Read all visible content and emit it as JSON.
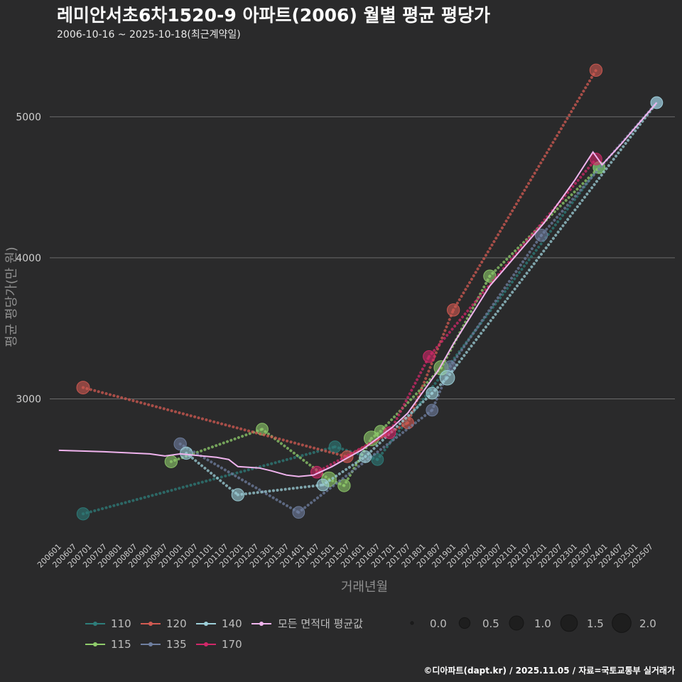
{
  "chart_data": {
    "type": "line",
    "title": "레미안서초6차1520-9 아파트(2006) 월별 평균 평당가",
    "subtitle": "2006-10-16 ~ 2025-10-18(최근계약일)",
    "xlabel": "거래년월",
    "ylabel": "평균 평당가(만 원)",
    "caption": "©디아파트(dapt.kr) / 2025.11.05 / 자료=국토교통부 실거래가",
    "x_ticks": [
      "200601",
      "200607",
      "200701",
      "200707",
      "200801",
      "200807",
      "200901",
      "200907",
      "201001",
      "201007",
      "201101",
      "201107",
      "201201",
      "201207",
      "201301",
      "201307",
      "201401",
      "201407",
      "201501",
      "201507",
      "201601",
      "201607",
      "201701",
      "201707",
      "201801",
      "201807",
      "201901",
      "201907",
      "202001",
      "202007",
      "202101",
      "202107",
      "202201",
      "202207",
      "202301",
      "202307",
      "202401",
      "202407",
      "202501",
      "202507"
    ],
    "y_ticks": [
      3000,
      4000,
      5000
    ],
    "ylim": [
      2000,
      5450
    ],
    "xlim": [
      2005.7,
      2026.3
    ],
    "series": [
      {
        "name": "110",
        "color": "#2e7d7a",
        "points": [
          {
            "x": 2006.8,
            "y": 2185,
            "size": 0.9
          },
          {
            "x": 2015.1,
            "y": 2660,
            "size": 0.8
          },
          {
            "x": 2016.5,
            "y": 2570,
            "size": 0.8
          },
          {
            "x": 2023.8,
            "y": 4640,
            "size": 0.6
          }
        ]
      },
      {
        "name": "115",
        "color": "#8fcc6b",
        "points": [
          {
            "x": 2009.7,
            "y": 2555,
            "size": 0.9
          },
          {
            "x": 2012.7,
            "y": 2785,
            "size": 0.8
          },
          {
            "x": 2014.9,
            "y": 2430,
            "size": 1.5
          },
          {
            "x": 2015.4,
            "y": 2385,
            "size": 0.9
          },
          {
            "x": 2016.3,
            "y": 2720,
            "size": 1.5
          },
          {
            "x": 2016.6,
            "y": 2770,
            "size": 0.8
          },
          {
            "x": 2018.6,
            "y": 3220,
            "size": 1.4
          },
          {
            "x": 2020.2,
            "y": 3870,
            "size": 0.9
          },
          {
            "x": 2023.8,
            "y": 4640,
            "size": 0.8
          }
        ]
      },
      {
        "name": "120",
        "color": "#d25a52",
        "points": [
          {
            "x": 2006.8,
            "y": 3080,
            "size": 1.0
          },
          {
            "x": 2015.5,
            "y": 2590,
            "size": 0.8
          },
          {
            "x": 2017.5,
            "y": 2830,
            "size": 0.8
          },
          {
            "x": 2019.0,
            "y": 3630,
            "size": 0.9
          },
          {
            "x": 2023.7,
            "y": 5330,
            "size": 0.9
          }
        ]
      },
      {
        "name": "135",
        "color": "#6f7fa0",
        "points": [
          {
            "x": 2010.0,
            "y": 2680,
            "size": 0.9
          },
          {
            "x": 2013.9,
            "y": 2195,
            "size": 0.8
          },
          {
            "x": 2018.3,
            "y": 2920,
            "size": 0.8
          },
          {
            "x": 2018.9,
            "y": 3230,
            "size": 0.7
          },
          {
            "x": 2021.9,
            "y": 4160,
            "size": 0.9
          },
          {
            "x": 2025.7,
            "y": 5100,
            "size": 0.8
          }
        ]
      },
      {
        "name": "140",
        "color": "#9ccfd8",
        "points": [
          {
            "x": 2010.2,
            "y": 2615,
            "size": 0.9
          },
          {
            "x": 2011.9,
            "y": 2320,
            "size": 0.9
          },
          {
            "x": 2014.7,
            "y": 2390,
            "size": 0.8
          },
          {
            "x": 2016.1,
            "y": 2590,
            "size": 0.8
          },
          {
            "x": 2018.3,
            "y": 3040,
            "size": 0.8
          },
          {
            "x": 2018.8,
            "y": 3150,
            "size": 1.5
          },
          {
            "x": 2025.7,
            "y": 5100,
            "size": 0.8
          }
        ]
      },
      {
        "name": "170",
        "color": "#d12869",
        "points": [
          {
            "x": 2014.5,
            "y": 2480,
            "size": 0.8
          },
          {
            "x": 2016.9,
            "y": 2760,
            "size": 0.8
          },
          {
            "x": 2018.2,
            "y": 3300,
            "size": 0.8
          },
          {
            "x": 2023.7,
            "y": 4700,
            "size": 0.8
          }
        ]
      }
    ],
    "overall_avg": {
      "name": "모든 면적대 평균값",
      "color": "#f0b4ee",
      "points": [
        {
          "x": 2006.0,
          "y": 2635
        },
        {
          "x": 2007.5,
          "y": 2625
        },
        {
          "x": 2009.0,
          "y": 2610
        },
        {
          "x": 2009.5,
          "y": 2595
        },
        {
          "x": 2010.0,
          "y": 2610
        },
        {
          "x": 2011.2,
          "y": 2585
        },
        {
          "x": 2011.6,
          "y": 2570
        },
        {
          "x": 2011.9,
          "y": 2520
        },
        {
          "x": 2012.6,
          "y": 2510
        },
        {
          "x": 2013.0,
          "y": 2490
        },
        {
          "x": 2013.5,
          "y": 2460
        },
        {
          "x": 2013.9,
          "y": 2450
        },
        {
          "x": 2014.4,
          "y": 2460
        },
        {
          "x": 2015.0,
          "y": 2520
        },
        {
          "x": 2015.5,
          "y": 2580
        },
        {
          "x": 2016.0,
          "y": 2640
        },
        {
          "x": 2016.5,
          "y": 2720
        },
        {
          "x": 2017.0,
          "y": 2800
        },
        {
          "x": 2017.5,
          "y": 2900
        },
        {
          "x": 2018.0,
          "y": 3050
        },
        {
          "x": 2018.5,
          "y": 3200
        },
        {
          "x": 2019.0,
          "y": 3390
        },
        {
          "x": 2019.5,
          "y": 3560
        },
        {
          "x": 2020.2,
          "y": 3800
        },
        {
          "x": 2021.0,
          "y": 4000
        },
        {
          "x": 2022.0,
          "y": 4250
        },
        {
          "x": 2023.0,
          "y": 4550
        },
        {
          "x": 2023.6,
          "y": 4750
        },
        {
          "x": 2023.9,
          "y": 4660
        },
        {
          "x": 2024.5,
          "y": 4800
        },
        {
          "x": 2025.3,
          "y": 5000
        },
        {
          "x": 2025.7,
          "y": 5100
        }
      ]
    },
    "size_legend": {
      "labels": [
        "0.0",
        "0.5",
        "1.0",
        "1.5",
        "2.0"
      ],
      "values": [
        0,
        0.5,
        1.0,
        1.5,
        2.0
      ]
    }
  }
}
